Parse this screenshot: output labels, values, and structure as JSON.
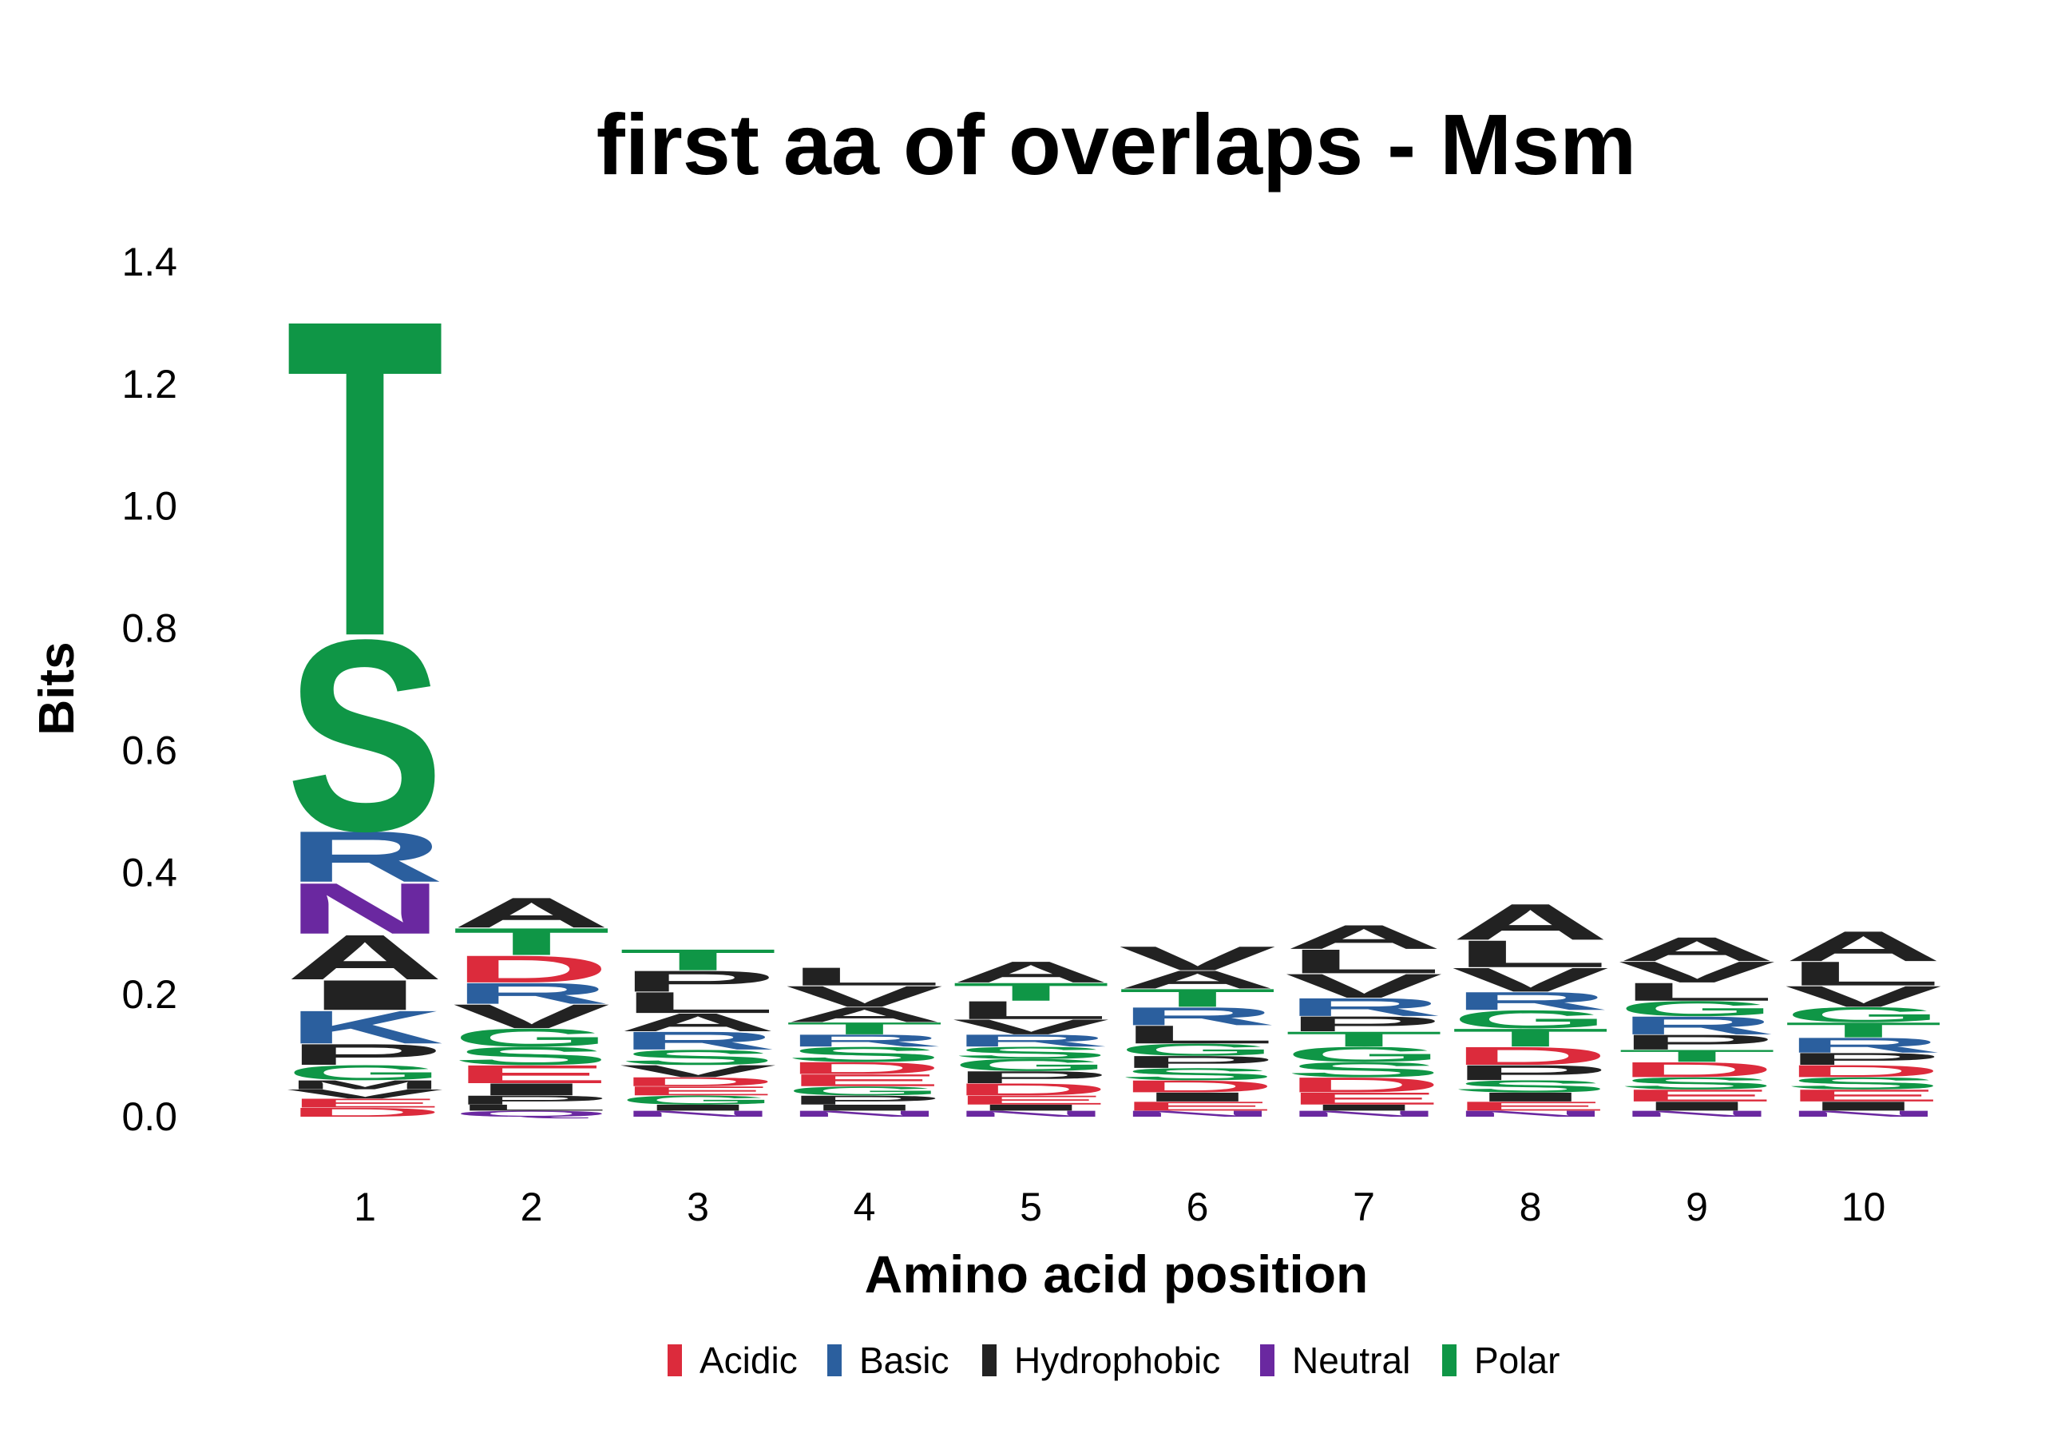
{
  "chart_data": {
    "type": "sequence-logo",
    "title": "first aa of overlaps - Msm",
    "xlabel": "Amino acid position",
    "ylabel": "Bits",
    "ylim": [
      0,
      1.4
    ],
    "yticks": [
      "0.0",
      "0.2",
      "0.4",
      "0.6",
      "0.8",
      "1.0",
      "1.2",
      "1.4"
    ],
    "yticks_values": [
      0,
      0.2,
      0.4,
      0.6,
      0.8,
      1.0,
      1.2,
      1.4
    ],
    "positions": [
      "1",
      "2",
      "3",
      "4",
      "5",
      "6",
      "7",
      "8",
      "9",
      "10"
    ],
    "groups": [
      {
        "name": "Acidic",
        "color": "#dc2b3c"
      },
      {
        "name": "Basic",
        "color": "#2b5f9e"
      },
      {
        "name": "Hydrophobic",
        "color": "#222222"
      },
      {
        "name": "Neutral",
        "color": "#6a28a0"
      },
      {
        "name": "Polar",
        "color": "#0f9646"
      }
    ],
    "stacks": [
      {
        "position": "1",
        "letters": [
          {
            "aa": "D",
            "group": "Acidic",
            "bits": 0.015
          },
          {
            "aa": "E",
            "group": "Acidic",
            "bits": 0.015
          },
          {
            "aa": "V",
            "group": "Hydrophobic",
            "bits": 0.015
          },
          {
            "aa": "M",
            "group": "Hydrophobic",
            "bits": 0.015
          },
          {
            "aa": "G",
            "group": "Polar",
            "bits": 0.025
          },
          {
            "aa": "P",
            "group": "Hydrophobic",
            "bits": 0.035
          },
          {
            "aa": "K",
            "group": "Basic",
            "bits": 0.055
          },
          {
            "aa": "I",
            "group": "Hydrophobic",
            "bits": 0.05
          },
          {
            "aa": "A",
            "group": "Hydrophobic",
            "bits": 0.075
          },
          {
            "aa": "N",
            "group": "Neutral",
            "bits": 0.085
          },
          {
            "aa": "R",
            "group": "Basic",
            "bits": 0.085
          },
          {
            "aa": "S",
            "group": "Polar",
            "bits": 0.32
          },
          {
            "aa": "T",
            "group": "Polar",
            "bits": 0.53
          }
        ]
      },
      {
        "position": "2",
        "letters": [
          {
            "aa": "Q",
            "group": "Neutral",
            "bits": 0.01
          },
          {
            "aa": "L",
            "group": "Hydrophobic",
            "bits": 0.01
          },
          {
            "aa": "P",
            "group": "Hydrophobic",
            "bits": 0.015
          },
          {
            "aa": "I",
            "group": "Hydrophobic",
            "bits": 0.02
          },
          {
            "aa": "E",
            "group": "Acidic",
            "bits": 0.03
          },
          {
            "aa": "S",
            "group": "Polar",
            "bits": 0.03
          },
          {
            "aa": "G",
            "group": "Polar",
            "bits": 0.03
          },
          {
            "aa": "V",
            "group": "Hydrophobic",
            "bits": 0.04
          },
          {
            "aa": "R",
            "group": "Basic",
            "bits": 0.035
          },
          {
            "aa": "D",
            "group": "Acidic",
            "bits": 0.045
          },
          {
            "aa": "T",
            "group": "Polar",
            "bits": 0.045
          },
          {
            "aa": "A",
            "group": "Hydrophobic",
            "bits": 0.05
          }
        ]
      },
      {
        "position": "3",
        "letters": [
          {
            "aa": "N",
            "group": "Neutral",
            "bits": 0.01
          },
          {
            "aa": "I",
            "group": "Hydrophobic",
            "bits": 0.01
          },
          {
            "aa": "G",
            "group": "Polar",
            "bits": 0.015
          },
          {
            "aa": "E",
            "group": "Acidic",
            "bits": 0.015
          },
          {
            "aa": "D",
            "group": "Acidic",
            "bits": 0.015
          },
          {
            "aa": "V",
            "group": "Hydrophobic",
            "bits": 0.02
          },
          {
            "aa": "S",
            "group": "Polar",
            "bits": 0.025
          },
          {
            "aa": "R",
            "group": "Basic",
            "bits": 0.03
          },
          {
            "aa": "A",
            "group": "Hydrophobic",
            "bits": 0.03
          },
          {
            "aa": "L",
            "group": "Hydrophobic",
            "bits": 0.035
          },
          {
            "aa": "P",
            "group": "Hydrophobic",
            "bits": 0.035
          },
          {
            "aa": "T",
            "group": "Polar",
            "bits": 0.035
          }
        ]
      },
      {
        "position": "4",
        "letters": [
          {
            "aa": "N",
            "group": "Neutral",
            "bits": 0.01
          },
          {
            "aa": "I",
            "group": "Hydrophobic",
            "bits": 0.01
          },
          {
            "aa": "P",
            "group": "Hydrophobic",
            "bits": 0.015
          },
          {
            "aa": "G",
            "group": "Polar",
            "bits": 0.015
          },
          {
            "aa": "E",
            "group": "Acidic",
            "bits": 0.02
          },
          {
            "aa": "D",
            "group": "Acidic",
            "bits": 0.02
          },
          {
            "aa": "S",
            "group": "Polar",
            "bits": 0.025
          },
          {
            "aa": "R",
            "group": "Basic",
            "bits": 0.02
          },
          {
            "aa": "T",
            "group": "Polar",
            "bits": 0.02
          },
          {
            "aa": "A",
            "group": "Hydrophobic",
            "bits": 0.025
          },
          {
            "aa": "V",
            "group": "Hydrophobic",
            "bits": 0.035
          },
          {
            "aa": "L",
            "group": "Hydrophobic",
            "bits": 0.03
          }
        ]
      },
      {
        "position": "5",
        "letters": [
          {
            "aa": "N",
            "group": "Neutral",
            "bits": 0.01
          },
          {
            "aa": "I",
            "group": "Hydrophobic",
            "bits": 0.01
          },
          {
            "aa": "E",
            "group": "Acidic",
            "bits": 0.015
          },
          {
            "aa": "D",
            "group": "Acidic",
            "bits": 0.02
          },
          {
            "aa": "P",
            "group": "Hydrophobic",
            "bits": 0.02
          },
          {
            "aa": "G",
            "group": "Polar",
            "bits": 0.02
          },
          {
            "aa": "S",
            "group": "Polar",
            "bits": 0.02
          },
          {
            "aa": "R",
            "group": "Basic",
            "bits": 0.02
          },
          {
            "aa": "V",
            "group": "Hydrophobic",
            "bits": 0.025
          },
          {
            "aa": "L",
            "group": "Hydrophobic",
            "bits": 0.03
          },
          {
            "aa": "T",
            "group": "Polar",
            "bits": 0.03
          },
          {
            "aa": "A",
            "group": "Hydrophobic",
            "bits": 0.035
          }
        ]
      },
      {
        "position": "6",
        "letters": [
          {
            "aa": "N",
            "group": "Neutral",
            "bits": 0.01
          },
          {
            "aa": "E",
            "group": "Acidic",
            "bits": 0.015
          },
          {
            "aa": "I",
            "group": "Hydrophobic",
            "bits": 0.015
          },
          {
            "aa": "D",
            "group": "Acidic",
            "bits": 0.02
          },
          {
            "aa": "S",
            "group": "Polar",
            "bits": 0.02
          },
          {
            "aa": "P",
            "group": "Hydrophobic",
            "bits": 0.02
          },
          {
            "aa": "G",
            "group": "Polar",
            "bits": 0.02
          },
          {
            "aa": "L",
            "group": "Hydrophobic",
            "bits": 0.03
          },
          {
            "aa": "R",
            "group": "Basic",
            "bits": 0.03
          },
          {
            "aa": "T",
            "group": "Polar",
            "bits": 0.03
          },
          {
            "aa": "A",
            "group": "Hydrophobic",
            "bits": 0.03
          },
          {
            "aa": "V",
            "group": "Hydrophobic",
            "bits": 0.04
          }
        ]
      },
      {
        "position": "7",
        "letters": [
          {
            "aa": "N",
            "group": "Neutral",
            "bits": 0.01
          },
          {
            "aa": "I",
            "group": "Hydrophobic",
            "bits": 0.01
          },
          {
            "aa": "E",
            "group": "Acidic",
            "bits": 0.02
          },
          {
            "aa": "D",
            "group": "Acidic",
            "bits": 0.025
          },
          {
            "aa": "S",
            "group": "Polar",
            "bits": 0.025
          },
          {
            "aa": "G",
            "group": "Polar",
            "bits": 0.025
          },
          {
            "aa": "T",
            "group": "Polar",
            "bits": 0.025
          },
          {
            "aa": "P",
            "group": "Hydrophobic",
            "bits": 0.025
          },
          {
            "aa": "R",
            "group": "Basic",
            "bits": 0.03
          },
          {
            "aa": "V",
            "group": "Hydrophobic",
            "bits": 0.04
          },
          {
            "aa": "L",
            "group": "Hydrophobic",
            "bits": 0.04
          },
          {
            "aa": "A",
            "group": "Hydrophobic",
            "bits": 0.04
          }
        ]
      },
      {
        "position": "8",
        "letters": [
          {
            "aa": "N",
            "group": "Neutral",
            "bits": 0.01
          },
          {
            "aa": "E",
            "group": "Acidic",
            "bits": 0.015
          },
          {
            "aa": "I",
            "group": "Hydrophobic",
            "bits": 0.015
          },
          {
            "aa": "S",
            "group": "Polar",
            "bits": 0.02
          },
          {
            "aa": "P",
            "group": "Hydrophobic",
            "bits": 0.025
          },
          {
            "aa": "D",
            "group": "Acidic",
            "bits": 0.03
          },
          {
            "aa": "T",
            "group": "Polar",
            "bits": 0.03
          },
          {
            "aa": "G",
            "group": "Polar",
            "bits": 0.03
          },
          {
            "aa": "R",
            "group": "Basic",
            "bits": 0.03
          },
          {
            "aa": "V",
            "group": "Hydrophobic",
            "bits": 0.04
          },
          {
            "aa": "L",
            "group": "Hydrophobic",
            "bits": 0.045
          },
          {
            "aa": "A",
            "group": "Hydrophobic",
            "bits": 0.06
          }
        ]
      },
      {
        "position": "9",
        "letters": [
          {
            "aa": "N",
            "group": "Neutral",
            "bits": 0.01
          },
          {
            "aa": "I",
            "group": "Hydrophobic",
            "bits": 0.015
          },
          {
            "aa": "E",
            "group": "Acidic",
            "bits": 0.02
          },
          {
            "aa": "S",
            "group": "Polar",
            "bits": 0.02
          },
          {
            "aa": "D",
            "group": "Acidic",
            "bits": 0.025
          },
          {
            "aa": "T",
            "group": "Polar",
            "bits": 0.02
          },
          {
            "aa": "P",
            "group": "Hydrophobic",
            "bits": 0.025
          },
          {
            "aa": "R",
            "group": "Basic",
            "bits": 0.03
          },
          {
            "aa": "G",
            "group": "Polar",
            "bits": 0.025
          },
          {
            "aa": "L",
            "group": "Hydrophobic",
            "bits": 0.03
          },
          {
            "aa": "V",
            "group": "Hydrophobic",
            "bits": 0.035
          },
          {
            "aa": "A",
            "group": "Hydrophobic",
            "bits": 0.04
          }
        ]
      },
      {
        "position": "10",
        "letters": [
          {
            "aa": "N",
            "group": "Neutral",
            "bits": 0.01
          },
          {
            "aa": "I",
            "group": "Hydrophobic",
            "bits": 0.015
          },
          {
            "aa": "E",
            "group": "Acidic",
            "bits": 0.02
          },
          {
            "aa": "S",
            "group": "Polar",
            "bits": 0.02
          },
          {
            "aa": "D",
            "group": "Acidic",
            "bits": 0.02
          },
          {
            "aa": "P",
            "group": "Hydrophobic",
            "bits": 0.02
          },
          {
            "aa": "R",
            "group": "Basic",
            "bits": 0.025
          },
          {
            "aa": "T",
            "group": "Polar",
            "bits": 0.025
          },
          {
            "aa": "G",
            "group": "Polar",
            "bits": 0.025
          },
          {
            "aa": "V",
            "group": "Hydrophobic",
            "bits": 0.035
          },
          {
            "aa": "L",
            "group": "Hydrophobic",
            "bits": 0.04
          },
          {
            "aa": "A",
            "group": "Hydrophobic",
            "bits": 0.05
          }
        ]
      }
    ]
  }
}
